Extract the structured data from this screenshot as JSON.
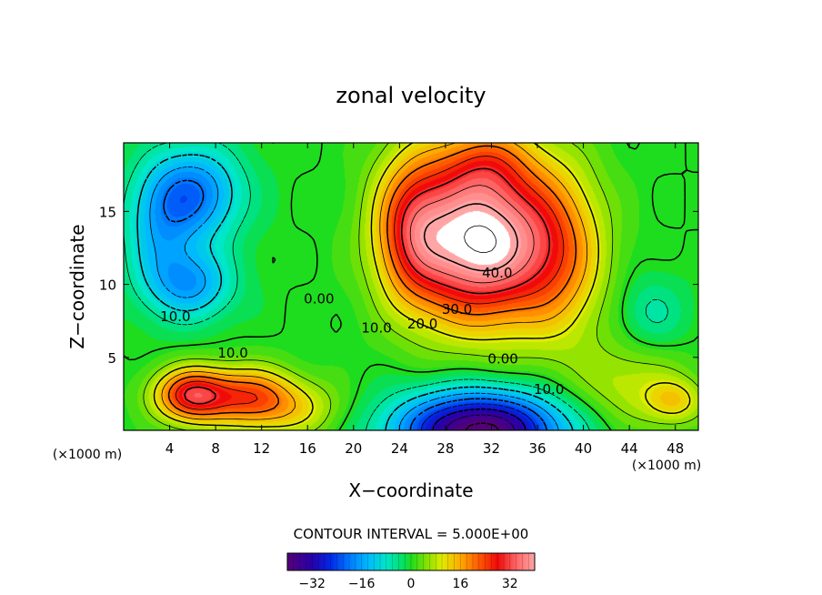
{
  "chart_data": {
    "type": "heatmap",
    "title": "zonal velocity",
    "xlabel": "X−coordinate",
    "ylabel": "Z−coordinate",
    "x_unit": "(×1000 m)",
    "xlim": [
      0,
      50
    ],
    "ylim": [
      0,
      19.7
    ],
    "x_ticks": [
      4,
      8,
      12,
      16,
      20,
      24,
      28,
      32,
      36,
      40,
      44,
      48
    ],
    "y_ticks": [
      5,
      10,
      15
    ],
    "contour_interval_label": "CONTOUR INTERVAL = 5.000E+00",
    "contour_interval": 5,
    "colorbar": {
      "range": [
        -40,
        40
      ],
      "ticks": [
        -32,
        -16,
        0,
        16,
        32
      ]
    },
    "contour_labels": [
      {
        "text": "40.0",
        "x": 32.5,
        "y": 10.8
      },
      {
        "text": "30.0",
        "x": 29.0,
        "y": 8.3
      },
      {
        "text": "20.0",
        "x": 26.0,
        "y": 7.3
      },
      {
        "text": "10.0",
        "x": 22.0,
        "y": 7.0
      },
      {
        "text": "0.00",
        "x": 17.0,
        "y": 9.0
      },
      {
        "text": "10.0",
        "x": 4.5,
        "y": 7.8
      },
      {
        "text": "10.0",
        "x": 9.5,
        "y": 5.3
      },
      {
        "text": "0.00",
        "x": 33.0,
        "y": 4.9
      },
      {
        "text": "10.0",
        "x": 37.0,
        "y": 2.8
      }
    ],
    "features": [
      {
        "name": "jet-maximum",
        "x": 31.0,
        "y": 13.0,
        "value": 45
      },
      {
        "name": "upper-core",
        "x": 31.0,
        "y": 18.0,
        "value": 43
      },
      {
        "name": "western-upper-minimum",
        "x": 7.0,
        "y": 16.0,
        "value": -18
      },
      {
        "name": "western-mid-minimum",
        "x": 6.0,
        "y": 10.0,
        "value": -14
      },
      {
        "name": "surface-minimum",
        "x": 31.0,
        "y": 1.0,
        "value": -38
      },
      {
        "name": "surface-maximum",
        "x": 6.0,
        "y": 2.5,
        "value": 30
      }
    ]
  }
}
